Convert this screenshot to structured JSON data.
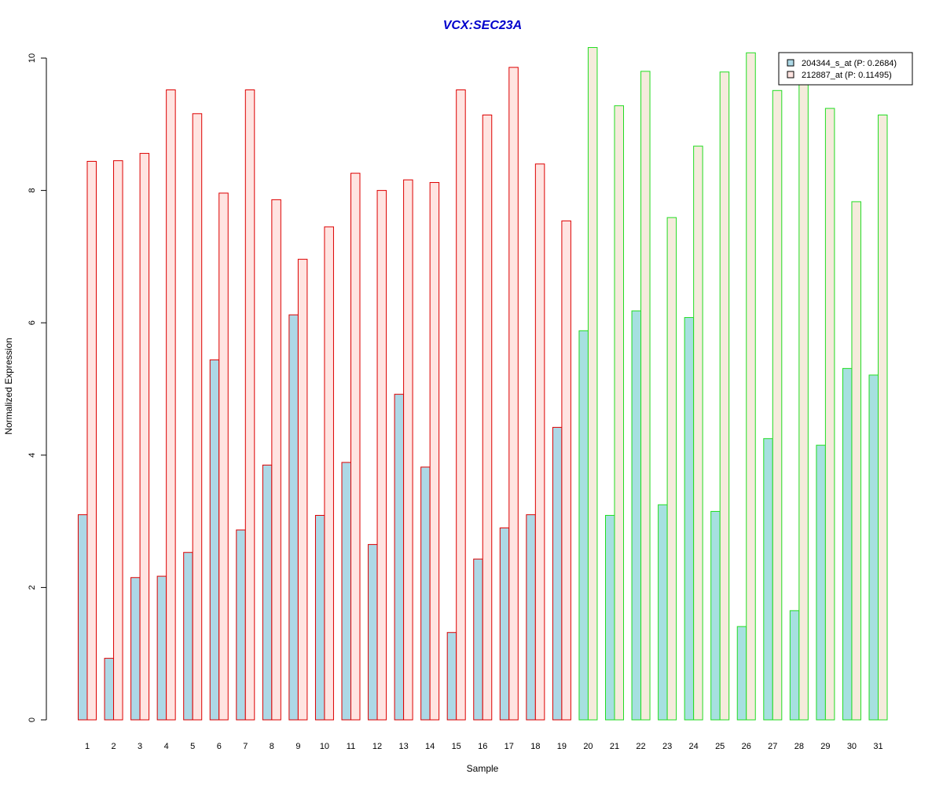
{
  "chart_data": {
    "type": "bar",
    "title": "VCX:SEC23A",
    "xlabel": "Sample",
    "ylabel": "Normalized Expression",
    "ylim": [
      0,
      10
    ],
    "yticks": [
      "0",
      "2",
      "4",
      "6",
      "8",
      "10"
    ],
    "grid": false,
    "legend_position": "top-right",
    "categories": [
      "1",
      "2",
      "3",
      "4",
      "5",
      "6",
      "7",
      "8",
      "9",
      "10",
      "11",
      "12",
      "13",
      "14",
      "15",
      "16",
      "17",
      "18",
      "19",
      "20",
      "21",
      "22",
      "23",
      "24",
      "25",
      "26",
      "27",
      "28",
      "29",
      "30",
      "31"
    ],
    "group_outline_colors": {
      "group_a": "#dd0000",
      "group_b": "#22dd22"
    },
    "sample_groups": [
      "group_a",
      "group_a",
      "group_a",
      "group_a",
      "group_a",
      "group_a",
      "group_a",
      "group_a",
      "group_a",
      "group_a",
      "group_a",
      "group_a",
      "group_a",
      "group_a",
      "group_a",
      "group_a",
      "group_a",
      "group_a",
      "group_a",
      "group_b",
      "group_b",
      "group_b",
      "group_b",
      "group_b",
      "group_b",
      "group_b",
      "group_b",
      "group_b",
      "group_b",
      "group_b",
      "group_b"
    ],
    "series": [
      {
        "name": "204344_s_at (P: 0.2684)",
        "fill_colors": {
          "group_a": "#add8e6",
          "group_b": "#a6e0e0"
        },
        "values": [
          3.1,
          0.93,
          2.15,
          2.17,
          2.53,
          5.44,
          2.87,
          3.85,
          6.12,
          3.09,
          3.89,
          2.65,
          4.92,
          3.82,
          1.32,
          2.43,
          2.9,
          3.1,
          4.42,
          5.88,
          3.09,
          6.18,
          3.25,
          6.08,
          3.15,
          1.41,
          4.25,
          1.65,
          4.15,
          5.31,
          5.21
        ]
      },
      {
        "name": "212887_at (P: 0.11495)",
        "fill_colors": {
          "group_a": "#ffe4e1",
          "group_b": "#f5ebdc"
        },
        "values": [
          8.44,
          8.45,
          8.56,
          9.52,
          9.16,
          7.96,
          9.52,
          7.86,
          6.96,
          7.45,
          8.26,
          8.0,
          8.16,
          8.12,
          9.52,
          9.14,
          9.86,
          8.4,
          7.54,
          10.16,
          9.28,
          9.8,
          7.59,
          8.67,
          9.79,
          10.08,
          9.51,
          9.6,
          9.24,
          7.83,
          9.14
        ]
      }
    ]
  }
}
